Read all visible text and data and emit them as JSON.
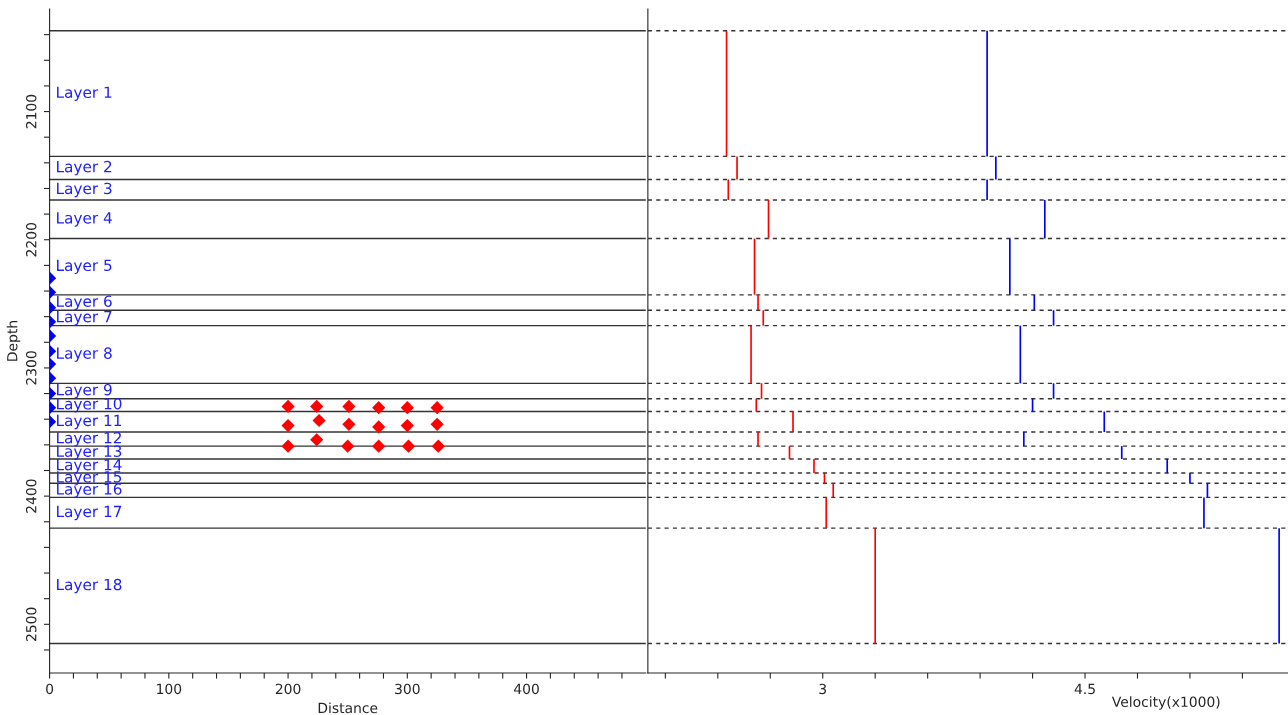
{
  "chart_data": [
    {
      "type": "scatter",
      "xlabel": "Distance",
      "ylabel": "Depth",
      "marker": "diamond",
      "xlim": [
        0,
        500
      ],
      "ylim": [
        2538,
        2020
      ],
      "xticks": [
        0,
        {
          "value": 20,
          "label": null
        },
        {
          "value": 40,
          "label": null
        },
        {
          "value": 60,
          "label": null
        },
        {
          "value": 80,
          "label": null
        },
        100,
        {
          "value": 120,
          "label": null
        },
        {
          "value": 140,
          "label": null
        },
        {
          "value": 160,
          "label": null
        },
        {
          "value": 180,
          "label": null
        },
        200,
        {
          "value": 220,
          "label": null
        },
        {
          "value": 240,
          "label": null
        },
        {
          "value": 260,
          "label": null
        },
        {
          "value": 280,
          "label": null
        },
        300,
        {
          "value": 320,
          "label": null
        },
        {
          "value": 340,
          "label": null
        },
        {
          "value": 360,
          "label": null
        },
        {
          "value": 380,
          "label": null
        },
        400,
        {
          "value": 420,
          "label": null
        },
        {
          "value": 440,
          "label": null
        },
        {
          "value": 460,
          "label": null
        },
        {
          "value": 480,
          "label": null
        }
      ],
      "yticks": [
        {
          "value": 2040,
          "label": null
        },
        {
          "value": 2060,
          "label": null
        },
        {
          "value": 2080,
          "label": null
        },
        2100,
        {
          "value": 2120,
          "label": null
        },
        {
          "value": 2140,
          "label": null
        },
        {
          "value": 2160,
          "label": null
        },
        {
          "value": 2180,
          "label": null
        },
        2200,
        {
          "value": 2220,
          "label": null
        },
        {
          "value": 2240,
          "label": null
        },
        {
          "value": 2260,
          "label": null
        },
        {
          "value": 2280,
          "label": null
        },
        2300,
        {
          "value": 2320,
          "label": null
        },
        {
          "value": 2340,
          "label": null
        },
        {
          "value": 2360,
          "label": null
        },
        {
          "value": 2380,
          "label": null
        },
        2400,
        {
          "value": 2420,
          "label": null
        },
        {
          "value": 2440,
          "label": null
        },
        {
          "value": 2460,
          "label": null
        },
        {
          "value": 2480,
          "label": null
        },
        2500,
        {
          "value": 2520,
          "label": null
        }
      ],
      "series": [
        {
          "color": "#0000ff",
          "x": [
            0,
            0,
            0,
            0,
            0,
            0,
            0,
            0,
            0,
            0,
            0
          ],
          "values": [
            2230,
            2241,
            2253,
            2264,
            2275,
            2287,
            2297,
            2308,
            2320,
            2331,
            2342
          ]
        },
        {
          "color": "#ff0000",
          "x": [
            200,
            224,
            251,
            276,
            300,
            325,
            200,
            226,
            251,
            276,
            300,
            325,
            200,
            224,
            250,
            276,
            301,
            326
          ],
          "values": [
            2330,
            2330,
            2330,
            2331,
            2331,
            2331,
            2345,
            2341,
            2344,
            2346,
            2345,
            2344,
            2361,
            2356,
            2361,
            2361,
            2361,
            2361
          ]
        }
      ],
      "ref_lines": [
        {
          "axis": "y",
          "value": 2037,
          "color": "#000000"
        },
        {
          "axis": "y",
          "value": 2135,
          "color": "#000000"
        },
        {
          "axis": "y",
          "value": 2153,
          "color": "#000000"
        },
        {
          "axis": "y",
          "value": 2169,
          "color": "#000000"
        },
        {
          "axis": "y",
          "value": 2199,
          "color": "#000000"
        },
        {
          "axis": "y",
          "value": 2243,
          "color": "#000000"
        },
        {
          "axis": "y",
          "value": 2255,
          "color": "#000000"
        },
        {
          "axis": "y",
          "value": 2267,
          "color": "#000000"
        },
        {
          "axis": "y",
          "value": 2312,
          "color": "#000000"
        },
        {
          "axis": "y",
          "value": 2324,
          "color": "#000000"
        },
        {
          "axis": "y",
          "value": 2334,
          "color": "#000000"
        },
        {
          "axis": "y",
          "value": 2350,
          "color": "#000000"
        },
        {
          "axis": "y",
          "value": 2361,
          "color": "#000000"
        },
        {
          "axis": "y",
          "value": 2371,
          "color": "#000000"
        },
        {
          "axis": "y",
          "value": 2382,
          "color": "#000000"
        },
        {
          "axis": "y",
          "value": 2390,
          "color": "#000000"
        },
        {
          "axis": "y",
          "value": 2401,
          "color": "#000000"
        },
        {
          "axis": "y",
          "value": 2425,
          "color": "#000000"
        },
        {
          "axis": "y",
          "value": 2515,
          "color": "#000000"
        }
      ],
      "annotations": [
        "Layer 1",
        "Layer 2",
        "Layer 3",
        "Layer 4",
        "Layer 5",
        "Layer 6",
        "Layer 7",
        "Layer 8",
        "Layer 9",
        "Layer 10",
        "Layer 11",
        "Layer 12",
        "Layer 13",
        "Layer 14",
        "Layer 15",
        "Layer 16",
        "Layer 17",
        "Layer 18"
      ]
    },
    {
      "type": "line",
      "xlabel": "Velocity(x1000)",
      "xlim": [
        2.0,
        5.66
      ],
      "ylim": [
        2538,
        2020
      ],
      "tick_labels": "x",
      "xticks": [
        {
          "value": 2.1,
          "label": null
        },
        {
          "value": 2.4,
          "label": null
        },
        {
          "value": 2.7,
          "label": null
        },
        3,
        {
          "value": 3.3,
          "label": null
        },
        {
          "value": 3.6,
          "label": null
        },
        {
          "value": 3.9,
          "label": null
        },
        {
          "value": 4.2,
          "label": null
        },
        4.5,
        {
          "value": 4.8,
          "label": null
        },
        {
          "value": 5.1,
          "label": null
        },
        {
          "value": 5.4,
          "label": null
        }
      ],
      "series": [
        {
          "color": "#ff0000",
          "x": [
            2.45,
            2.45
          ],
          "values": [
            2037,
            2135
          ]
        },
        {
          "color": "#ff0000",
          "x": [
            2.51,
            2.51
          ],
          "values": [
            2135,
            2153
          ]
        },
        {
          "color": "#ff0000",
          "x": [
            2.46,
            2.46
          ],
          "values": [
            2153,
            2169
          ]
        },
        {
          "color": "#ff0000",
          "x": [
            2.69,
            2.69
          ],
          "values": [
            2169,
            2199
          ]
        },
        {
          "color": "#ff0000",
          "x": [
            2.61,
            2.61
          ],
          "values": [
            2199,
            2243
          ]
        },
        {
          "color": "#ff0000",
          "x": [
            2.63,
            2.63
          ],
          "values": [
            2243,
            2255
          ]
        },
        {
          "color": "#ff0000",
          "x": [
            2.66,
            2.66
          ],
          "values": [
            2255,
            2267
          ]
        },
        {
          "color": "#ff0000",
          "x": [
            2.59,
            2.59
          ],
          "values": [
            2267,
            2312
          ]
        },
        {
          "color": "#ff0000",
          "x": [
            2.65,
            2.65
          ],
          "values": [
            2312,
            2324
          ]
        },
        {
          "color": "#ff0000",
          "x": [
            2.62,
            2.62
          ],
          "values": [
            2324,
            2334
          ]
        },
        {
          "color": "#ff0000",
          "x": [
            2.83,
            2.83
          ],
          "values": [
            2334,
            2350
          ]
        },
        {
          "color": "#ff0000",
          "x": [
            2.63,
            2.63
          ],
          "values": [
            2350,
            2361
          ]
        },
        {
          "color": "#ff0000",
          "x": [
            2.81,
            2.81
          ],
          "values": [
            2361,
            2371
          ]
        },
        {
          "color": "#ff0000",
          "x": [
            2.95,
            2.95
          ],
          "values": [
            2371,
            2382
          ]
        },
        {
          "color": "#ff0000",
          "x": [
            3.01,
            3.01
          ],
          "values": [
            2382,
            2390
          ]
        },
        {
          "color": "#ff0000",
          "x": [
            3.06,
            3.06
          ],
          "values": [
            2390,
            2401
          ]
        },
        {
          "color": "#ff0000",
          "x": [
            3.02,
            3.02
          ],
          "values": [
            2401,
            2425
          ]
        },
        {
          "color": "#ff0000",
          "x": [
            3.3,
            3.3
          ],
          "values": [
            2425,
            2515
          ]
        },
        {
          "color": "#0000ff",
          "x": [
            3.94,
            3.94
          ],
          "values": [
            2037,
            2135
          ]
        },
        {
          "color": "#0000ff",
          "x": [
            3.99,
            3.99
          ],
          "values": [
            2135,
            2153
          ]
        },
        {
          "color": "#0000ff",
          "x": [
            3.94,
            3.94
          ],
          "values": [
            2153,
            2169
          ]
        },
        {
          "color": "#0000ff",
          "x": [
            4.27,
            4.27
          ],
          "values": [
            2169,
            2199
          ]
        },
        {
          "color": "#0000ff",
          "x": [
            4.07,
            4.07
          ],
          "values": [
            2199,
            2243
          ]
        },
        {
          "color": "#0000ff",
          "x": [
            4.21,
            4.21
          ],
          "values": [
            2243,
            2255
          ]
        },
        {
          "color": "#0000ff",
          "x": [
            4.32,
            4.32
          ],
          "values": [
            2255,
            2267
          ]
        },
        {
          "color": "#0000ff",
          "x": [
            4.13,
            4.13
          ],
          "values": [
            2267,
            2312
          ]
        },
        {
          "color": "#0000ff",
          "x": [
            4.32,
            4.32
          ],
          "values": [
            2312,
            2324
          ]
        },
        {
          "color": "#0000ff",
          "x": [
            4.2,
            4.2
          ],
          "values": [
            2324,
            2334
          ]
        },
        {
          "color": "#0000ff",
          "x": [
            4.61,
            4.61
          ],
          "values": [
            2334,
            2350
          ]
        },
        {
          "color": "#0000ff",
          "x": [
            4.15,
            4.15
          ],
          "values": [
            2350,
            2361
          ]
        },
        {
          "color": "#0000ff",
          "x": [
            4.71,
            4.71
          ],
          "values": [
            2361,
            2371
          ]
        },
        {
          "color": "#0000ff",
          "x": [
            4.97,
            4.97
          ],
          "values": [
            2371,
            2382
          ]
        },
        {
          "color": "#0000ff",
          "x": [
            5.1,
            5.1
          ],
          "values": [
            2382,
            2390
          ]
        },
        {
          "color": "#0000ff",
          "x": [
            5.2,
            5.2
          ],
          "values": [
            2390,
            2401
          ]
        },
        {
          "color": "#0000ff",
          "x": [
            5.18,
            5.18
          ],
          "values": [
            2401,
            2425
          ]
        },
        {
          "color": "#0000ff",
          "x": [
            5.61,
            5.61
          ],
          "values": [
            2425,
            2515
          ]
        }
      ],
      "ref_lines": [
        {
          "axis": "y",
          "value": 2037,
          "color": "#000000",
          "line_style": "dashed"
        },
        {
          "axis": "y",
          "value": 2135,
          "color": "#000000",
          "line_style": "dashed"
        },
        {
          "axis": "y",
          "value": 2153,
          "color": "#000000",
          "line_style": "dashed"
        },
        {
          "axis": "y",
          "value": 2169,
          "color": "#000000",
          "line_style": "dashed"
        },
        {
          "axis": "y",
          "value": 2199,
          "color": "#000000",
          "line_style": "dashed"
        },
        {
          "axis": "y",
          "value": 2243,
          "color": "#000000",
          "line_style": "dashed"
        },
        {
          "axis": "y",
          "value": 2255,
          "color": "#000000",
          "line_style": "dashed"
        },
        {
          "axis": "y",
          "value": 2267,
          "color": "#000000",
          "line_style": "dashed"
        },
        {
          "axis": "y",
          "value": 2312,
          "color": "#000000",
          "line_style": "dashed"
        },
        {
          "axis": "y",
          "value": 2324,
          "color": "#000000",
          "line_style": "dashed"
        },
        {
          "axis": "y",
          "value": 2334,
          "color": "#000000",
          "line_style": "dashed"
        },
        {
          "axis": "y",
          "value": 2350,
          "color": "#000000",
          "line_style": "dashed"
        },
        {
          "axis": "y",
          "value": 2361,
          "color": "#000000",
          "line_style": "dashed"
        },
        {
          "axis": "y",
          "value": 2371,
          "color": "#000000",
          "line_style": "dashed"
        },
        {
          "axis": "y",
          "value": 2382,
          "color": "#000000",
          "line_style": "dashed"
        },
        {
          "axis": "y",
          "value": 2390,
          "color": "#000000",
          "line_style": "dashed"
        },
        {
          "axis": "y",
          "value": 2401,
          "color": "#000000",
          "line_style": "dashed"
        },
        {
          "axis": "y",
          "value": 2425,
          "color": "#000000",
          "line_style": "dashed"
        },
        {
          "axis": "y",
          "value": 2515,
          "color": "#000000",
          "line_style": "dashed"
        }
      ]
    }
  ]
}
